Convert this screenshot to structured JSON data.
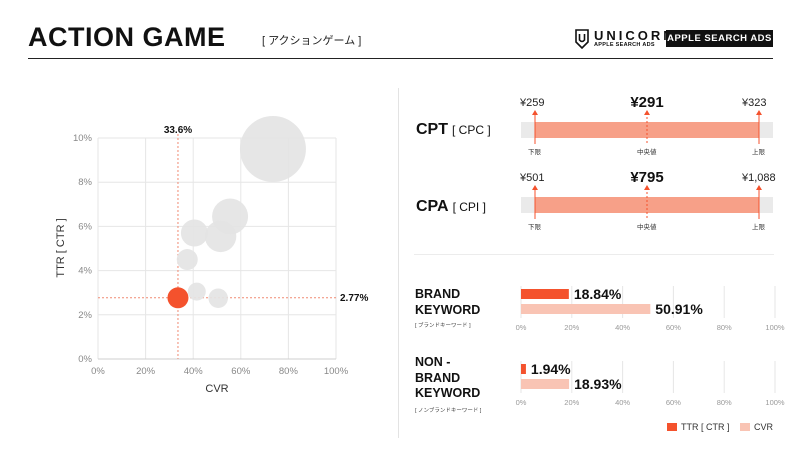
{
  "header": {
    "title": "ACTION GAME",
    "subtitle": "[ アクションゲーム ]",
    "brand_name": "UNICORN",
    "brand_sub": "APPLE SEARCH ADS",
    "badge": "APPLE SEARCH ADS"
  },
  "chart_data": [
    {
      "type": "scatter",
      "xlabel": "CVR",
      "ylabel": "TTR [ CTR ]",
      "xlim": [
        0,
        100
      ],
      "ylim": [
        0,
        10
      ],
      "x_ticks": [
        "0%",
        "20%",
        "40%",
        "60%",
        "80%",
        "100%"
      ],
      "y_ticks": [
        "0%",
        "2%",
        "4%",
        "6%",
        "8%",
        "10%"
      ],
      "grid": true,
      "reference_x": 33.6,
      "reference_x_label": "33.6%",
      "reference_y": 2.77,
      "reference_y_label": "2.77%",
      "highlight_point": {
        "x": 33.6,
        "y": 2.77
      },
      "points": [
        {
          "x": 73.5,
          "y": 9.5,
          "size": 44
        },
        {
          "x": 55.5,
          "y": 6.45,
          "size": 24
        },
        {
          "x": 51.5,
          "y": 5.55,
          "size": 21
        },
        {
          "x": 40.5,
          "y": 5.7,
          "size": 18
        },
        {
          "x": 37.5,
          "y": 4.5,
          "size": 14
        },
        {
          "x": 41.5,
          "y": 3.05,
          "size": 12
        },
        {
          "x": 50.5,
          "y": 2.75,
          "size": 13
        }
      ],
      "colors": {
        "bubble": "#e4e4e4",
        "highlight": "#f4522d",
        "reference": "#f08a72"
      }
    },
    {
      "type": "bar",
      "title": "BRAND KEYWORD",
      "subtitle": "[ ブランドキーワード ]",
      "x_ticks": [
        "0%",
        "20%",
        "40%",
        "60%",
        "80%",
        "100%"
      ],
      "series": [
        {
          "name": "TTR [ CTR ]",
          "value": 18.84,
          "label": "18.84%",
          "color": "#f4522d"
        },
        {
          "name": "CVR",
          "value": 50.91,
          "label": "50.91%",
          "color": "#f9c4b4"
        }
      ]
    },
    {
      "type": "bar",
      "title": "NON - BRAND KEYWORD",
      "subtitle": "[ ノンブランドキーワード ]",
      "x_ticks": [
        "0%",
        "20%",
        "40%",
        "60%",
        "80%",
        "100%"
      ],
      "series": [
        {
          "name": "TTR [ CTR ]",
          "value": 1.94,
          "label": "1.94%",
          "color": "#f4522d"
        },
        {
          "name": "CVR",
          "value": 18.93,
          "label": "18.93%",
          "color": "#f9c4b4"
        }
      ]
    }
  ],
  "cpt": {
    "label": "CPT",
    "sub": "[ CPC ]",
    "low": "¥259",
    "mid": "¥291",
    "high": "¥323",
    "low_label": "下限",
    "mid_label": "中央値",
    "high_label": "上限"
  },
  "cpa": {
    "label": "CPA",
    "sub": "[ CPI ]",
    "low": "¥501",
    "mid": "¥795",
    "high": "¥1,088",
    "low_label": "下限",
    "mid_label": "中央値",
    "high_label": "上限"
  },
  "brand": {
    "label_line1": "BRAND",
    "label_line2": "KEYWORD",
    "sub": "[ ブランドキーワード ]"
  },
  "nonbrand": {
    "label_line1": "NON -",
    "label_line2": "BRAND",
    "label_line3": "KEYWORD",
    "sub": "[ ノンブランドキーワード ]"
  },
  "legend": {
    "ttr": "TTR [ CTR ]",
    "cvr": "CVR",
    "ttr_color": "#f4522d",
    "cvr_color": "#f9c4b4"
  },
  "colors": {
    "range_fill": "#f7a088",
    "range_track": "#eaeaea",
    "marker": "#f4522d"
  }
}
